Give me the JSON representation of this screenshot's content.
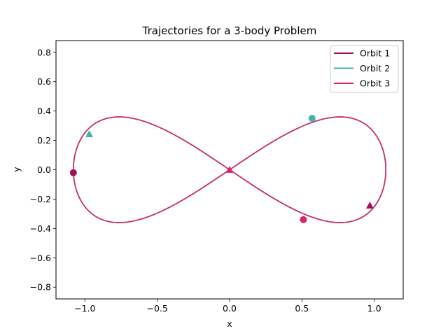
{
  "chart_data": {
    "type": "line",
    "title": "Trajectories for a 3-body Problem",
    "xlabel": "x",
    "ylabel": "y",
    "xlim": [
      -1.2,
      1.2
    ],
    "ylim": [
      -0.88,
      0.88
    ],
    "xticks": [
      -1.0,
      -0.5,
      0.0,
      0.5,
      1.0
    ],
    "xtick_labels": [
      "−1.0",
      "−0.5",
      "0.0",
      "0.5",
      "1.0"
    ],
    "yticks": [
      -0.8,
      -0.6,
      -0.4,
      -0.2,
      0.0,
      0.2,
      0.4,
      0.6,
      0.8
    ],
    "ytick_labels": [
      "−0.8",
      "−0.6",
      "−0.4",
      "−0.2",
      "0.0",
      "0.2",
      "0.4",
      "0.6",
      "0.8"
    ],
    "grid": false,
    "legend_position": "top-right",
    "trajectory_shape": "figure-eight choreography through origin, x extent ±1.08, y extent ±0.36",
    "series": [
      {
        "name": "Orbit 1",
        "color": "#a0105a",
        "start_marker": "triangle",
        "start": [
          0.97,
          -0.243
        ],
        "end_marker": "circle",
        "end": [
          -1.08,
          -0.02
        ]
      },
      {
        "name": "Orbit 2",
        "color": "#3cb5ad",
        "start_marker": "triangle",
        "start": [
          -0.97,
          0.243
        ],
        "end_marker": "circle",
        "end": [
          0.57,
          0.35
        ]
      },
      {
        "name": "Orbit 3",
        "color": "#d6266e",
        "start_marker": "triangle",
        "start": [
          0.0,
          0.0
        ],
        "end_marker": "circle",
        "end": [
          0.51,
          -0.34
        ]
      }
    ]
  }
}
